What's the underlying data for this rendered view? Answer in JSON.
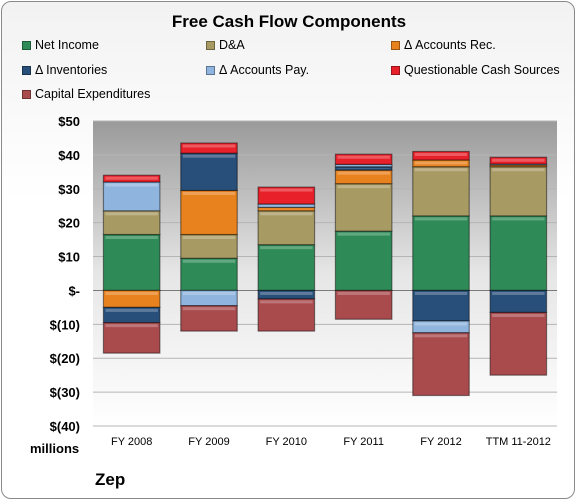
{
  "chart_data": {
    "type": "bar",
    "title": "Free Cash Flow Components",
    "units_label": "millions",
    "company": "Zep",
    "ylim": [
      -40,
      50
    ],
    "yticks": [
      {
        "value": 50,
        "label": "$50"
      },
      {
        "value": 40,
        "label": "$40"
      },
      {
        "value": 30,
        "label": "$30"
      },
      {
        "value": 20,
        "label": "$20"
      },
      {
        "value": 10,
        "label": "$10"
      },
      {
        "value": 0,
        "label": "$-"
      },
      {
        "value": -10,
        "label": "$(10)"
      },
      {
        "value": -20,
        "label": "$(20)"
      },
      {
        "value": -30,
        "label": "$(30)"
      },
      {
        "value": -40,
        "label": "$(40)"
      }
    ],
    "grid": true,
    "legend_position": "top",
    "categories": [
      "FY 2008",
      "FY 2009",
      "FY 2010",
      "FY 2011",
      "FY 2012",
      "TTM 11-2012"
    ],
    "series": [
      {
        "name": "Net Income",
        "color": "#2e8b57",
        "values": [
          16.5,
          9.5,
          13.5,
          17.5,
          22,
          22
        ]
      },
      {
        "name": "D&A",
        "color": "#a89a63",
        "values": [
          7,
          7,
          10,
          14,
          14.5,
          14.5
        ]
      },
      {
        "name": "Δ Accounts Rec.",
        "color": "#e8821e",
        "values": [
          -5,
          13,
          1,
          4,
          2,
          0.5
        ]
      },
      {
        "name": "Δ Inventories",
        "color": "#284f7a",
        "values": [
          -4.5,
          11,
          -2.5,
          1,
          -9,
          -6.5
        ]
      },
      {
        "name": "Δ Accounts Pay.",
        "color": "#8fb4de",
        "values": [
          8.5,
          -4.5,
          1,
          0.7,
          -3.5,
          0.3
        ]
      },
      {
        "name": "Questionable Cash Sources",
        "color": "#e8202a",
        "values": [
          2,
          3,
          5,
          3,
          2.5,
          2
        ]
      },
      {
        "name": "Capital Expenditures",
        "color": "#a94a4d",
        "values": [
          -9,
          -7.5,
          -9.5,
          -8.5,
          -18.5,
          -18.5
        ]
      }
    ]
  }
}
